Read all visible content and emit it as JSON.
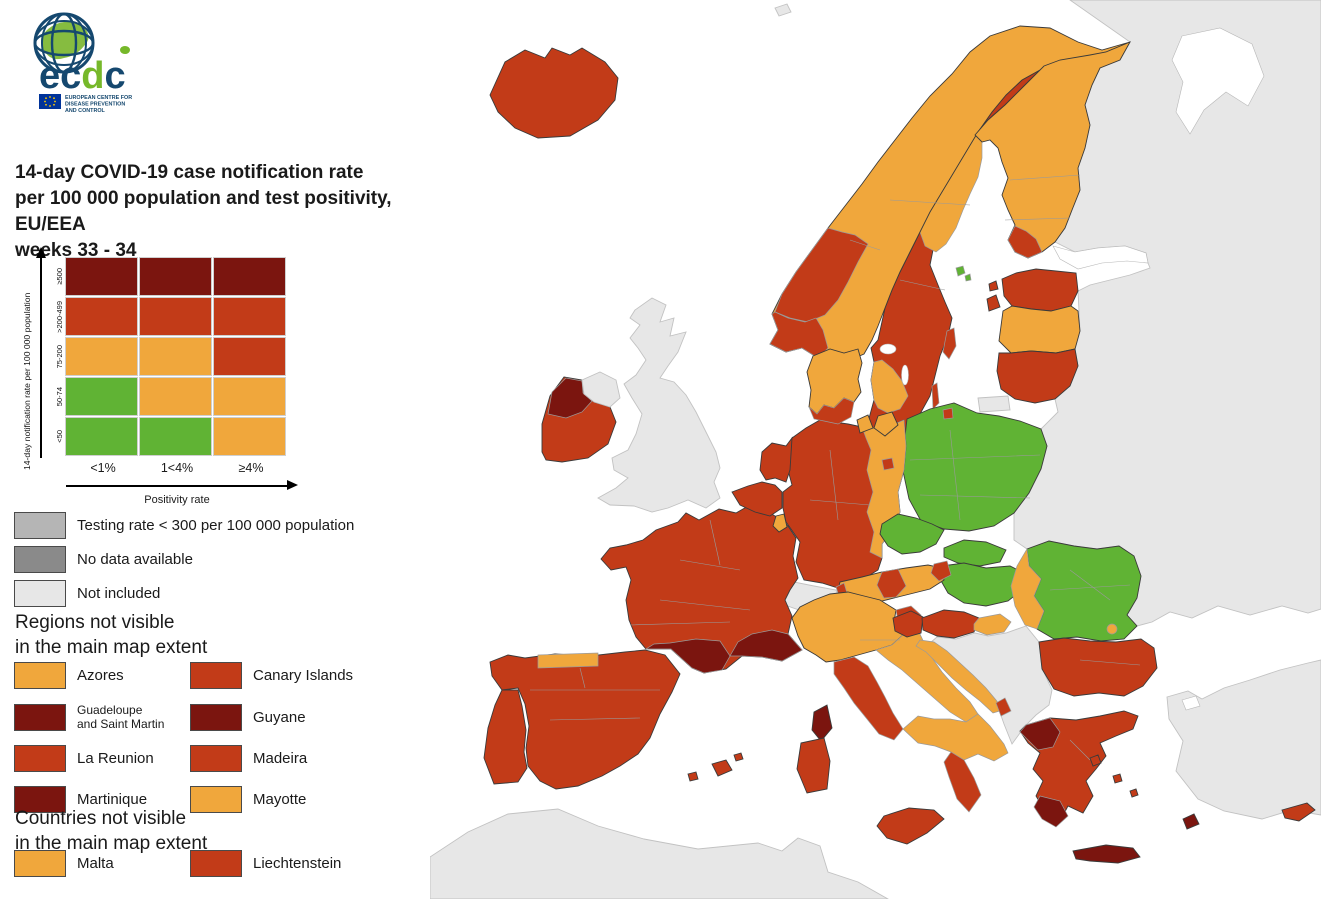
{
  "logo": {
    "brand": "ecdc",
    "org_lines": [
      "EUROPEAN CENTRE FOR",
      "DISEASE PREVENTION",
      "AND CONTROL"
    ],
    "brand_color": "#15486F",
    "accent_green": "#86BC40",
    "flag_blue": "#003399",
    "flag_star_yellow": "#FFCC00"
  },
  "title": {
    "line1": "14-day COVID-19 case notification rate",
    "line2": "per 100 000 population and test positivity, EU/EEA",
    "line3": "weeks 33 - 34"
  },
  "colors": {
    "dark_red": "#7B150F",
    "red": "#C23B18",
    "orange": "#F0A73C",
    "green": "#60B334",
    "gray_testing": "#B5B5B5",
    "gray_nodata": "#8A8A8A",
    "gray_not_included": "#E7E7E7",
    "sea": "#FFFFFF"
  },
  "matrix": {
    "y_axis_label": "14-day notification rate per 100 000 population",
    "x_axis_label": "Positivity rate",
    "col_labels": [
      "<1%",
      "1<4%",
      "≥4%"
    ],
    "rows": [
      {
        "label": "≥500",
        "cells": [
          "dark_red",
          "dark_red",
          "dark_red"
        ]
      },
      {
        "label": ">200-499",
        "cells": [
          "red",
          "red",
          "red"
        ]
      },
      {
        "label": "75-200",
        "cells": [
          "orange",
          "orange",
          "red"
        ]
      },
      {
        "label": "50-74",
        "cells": [
          "green",
          "orange",
          "orange"
        ]
      },
      {
        "label": "<50",
        "cells": [
          "green",
          "green",
          "orange"
        ]
      }
    ]
  },
  "legend_items": [
    {
      "label": "Testing rate < 300 per 100 000 population",
      "color_key": "gray_testing"
    },
    {
      "label": "No data available",
      "color_key": "gray_nodata"
    },
    {
      "label": "Not included",
      "color_key": "gray_not_included"
    }
  ],
  "regions_section": {
    "heading_line1": "Regions not visible",
    "heading_line2": "in the main map extent",
    "items": [
      {
        "label": "Azores",
        "color_key": "orange"
      },
      {
        "label": "Canary Islands",
        "color_key": "red"
      },
      {
        "label": "Guadeloupe",
        "label_line2": "and Saint Martin",
        "color_key": "dark_red"
      },
      {
        "label": "Guyane",
        "color_key": "dark_red"
      },
      {
        "label": "La Reunion",
        "color_key": "red"
      },
      {
        "label": "Madeira",
        "color_key": "red"
      },
      {
        "label": "Martinique",
        "color_key": "dark_red"
      },
      {
        "label": "Mayotte",
        "color_key": "orange"
      }
    ]
  },
  "countries_section": {
    "heading_line1": "Countries not visible",
    "heading_line2": "in the main map extent",
    "items": [
      {
        "label": "Malta",
        "color_key": "orange"
      },
      {
        "label": "Liechtenstein",
        "color_key": "red"
      }
    ]
  },
  "map": {
    "region_categories": {
      "russia": "gray_not_included",
      "turkey": "gray_not_included",
      "africa": "gray_not_included",
      "balkans": "gray_not_included",
      "switzerland": "gray_not_included",
      "uk": "gray_not_included",
      "northern-ireland": "gray_not_included",
      "kaliningrad": "gray_not_included",
      "jan-mayen": "gray_not_included",
      "white-sea": "sea",
      "gulf-of-finland": "sea",
      "marmara": "sea",
      "lake-vanern": "sea",
      "lake-vattern": "sea",
      "iceland": "red",
      "ireland": "red",
      "ireland-nw": "dark_red",
      "norway": "orange",
      "norway-mid": "red",
      "norway-southwest": "red",
      "sweden": "red",
      "sweden-nw": "orange",
      "sweden-sw": "orange",
      "gotland": "red",
      "oland": "red",
      "aland": "green",
      "finland": "orange",
      "finland-sw": "red",
      "denmark": "orange",
      "denmark-islands": "orange",
      "denmark-south": "red",
      "bornholm": "red",
      "estonia": "red",
      "estonia-islands": "red",
      "latvia": "orange",
      "lithuania": "red",
      "poland": "green",
      "germany-west": "red",
      "germany-east": "orange",
      "berlin": "red",
      "netherlands": "red",
      "belgium": "red",
      "luxembourg": "orange",
      "france": "red",
      "occitanie": "dark_red",
      "provence": "dark_red",
      "corsica": "dark_red",
      "spain": "red",
      "asturias": "orange",
      "portugal": "red",
      "balearic-islands": "red",
      "italy-north": "orange",
      "friuli": "red",
      "tuscany-lazio": "red",
      "italy-center": "orange",
      "italy-south": "orange",
      "calabria": "red",
      "sicily": "red",
      "sardinia": "red",
      "slovenia": "red",
      "croatia-north": "red",
      "croatia-slavonia": "orange",
      "croatia-coast": "orange",
      "dubrovnik": "red",
      "austria": "orange",
      "vienna": "red",
      "austria-central": "red",
      "vorarlberg": "red",
      "czechia": "green",
      "slovakia": "green",
      "hungary": "green",
      "romania": "green",
      "romania-west": "orange",
      "bucharest": "orange",
      "bulgaria": "red",
      "greece": "red",
      "greece-nw": "dark_red",
      "peloponnese": "dark_red",
      "crete": "dark_red",
      "rhodes": "dark_red",
      "aegean-islands": "red",
      "cyprus": "red"
    }
  }
}
